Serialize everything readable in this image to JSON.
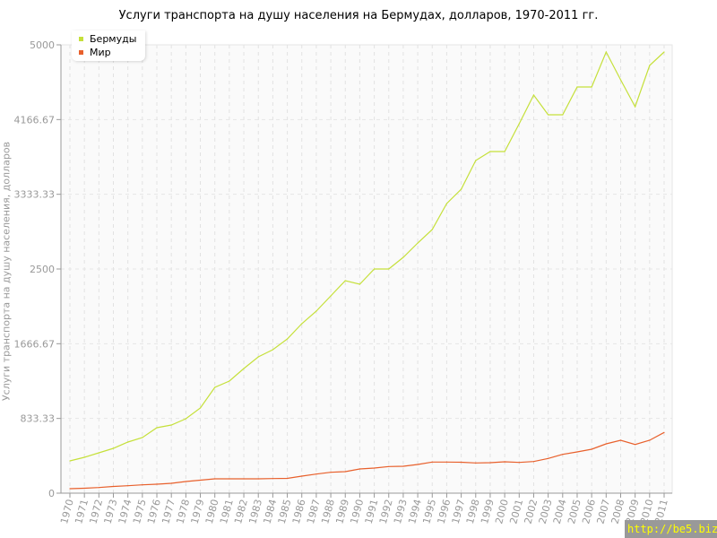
{
  "chart_data": {
    "type": "line",
    "title": "Услуги транспорта на душу населения на Бермудах, долларов, 1970-2011 гг.",
    "xlabel": "",
    "ylabel": "Услуги транспорта на душу населения, долларов",
    "ylim": [
      0,
      5000
    ],
    "yticks": [
      "0",
      "833.33",
      "1666.67",
      "2500",
      "3333.33",
      "4166.67",
      "5000"
    ],
    "grid": true,
    "legend_position": "top-left",
    "x": [
      1970,
      1971,
      1972,
      1973,
      1974,
      1975,
      1976,
      1977,
      1978,
      1979,
      1980,
      1981,
      1982,
      1983,
      1984,
      1985,
      1986,
      1987,
      1988,
      1989,
      1990,
      1991,
      1992,
      1993,
      1994,
      1995,
      1996,
      1997,
      1998,
      1999,
      2000,
      2001,
      2002,
      2003,
      2004,
      2005,
      2006,
      2007,
      2008,
      2009,
      2010,
      2011
    ],
    "series": [
      {
        "name": "Бермуды",
        "color": "#c5e03a",
        "values": [
          360,
          400,
          450,
          500,
          570,
          620,
          730,
          760,
          830,
          950,
          1180,
          1250,
          1390,
          1520,
          1600,
          1720,
          1890,
          2030,
          2200,
          2370,
          2330,
          2500,
          2500,
          2630,
          2790,
          2940,
          3230,
          3390,
          3710,
          3810,
          3810,
          4120,
          4440,
          4220,
          4220,
          4530,
          4530,
          4920,
          4610,
          4310,
          4770,
          4920
        ]
      },
      {
        "name": "Мир",
        "color": "#e8602c",
        "values": [
          50,
          55,
          63,
          75,
          83,
          93,
          100,
          110,
          130,
          145,
          160,
          160,
          160,
          160,
          163,
          165,
          190,
          213,
          233,
          240,
          270,
          280,
          297,
          300,
          320,
          347,
          347,
          345,
          337,
          340,
          350,
          343,
          353,
          387,
          433,
          460,
          490,
          550,
          590,
          543,
          590,
          677
        ]
      }
    ]
  },
  "watermark": "http://be5.biz/"
}
